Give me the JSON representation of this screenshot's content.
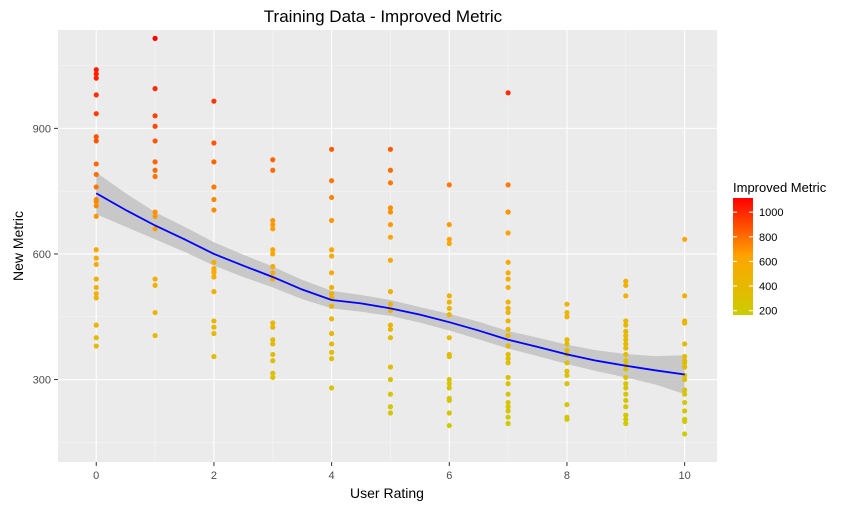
{
  "chart_data": {
    "type": "scatter",
    "title": "Training Data - Improved Metric",
    "xlabel": "User Rating",
    "ylabel": "New Metric",
    "xlim": [
      -0.65,
      10.55
    ],
    "ylim": [
      103,
      1135
    ],
    "x_ticks": [
      0,
      2,
      4,
      6,
      8,
      10
    ],
    "y_ticks": [
      300,
      600,
      900
    ],
    "grid": true,
    "background": "#ebebeb",
    "legend": {
      "title": "Improved Metric",
      "position": "right",
      "ticks": [
        200,
        400,
        600,
        800,
        1000
      ],
      "range": [
        165,
        1115
      ],
      "colors": {
        "low": "#cccc00",
        "mid": "#ffa500",
        "high": "#ff0000"
      }
    },
    "smooth": {
      "color": "#0000ff",
      "band_color": "#bfbfbf",
      "x": [
        0,
        0.5,
        1,
        1.5,
        2,
        2.5,
        3,
        3.5,
        4,
        4.5,
        5,
        5.5,
        6,
        6.5,
        7,
        7.5,
        8,
        8.5,
        9,
        9.5,
        10
      ],
      "y": [
        745,
        705,
        668,
        635,
        600,
        572,
        545,
        515,
        490,
        482,
        470,
        455,
        437,
        417,
        395,
        378,
        360,
        345,
        333,
        322,
        312
      ],
      "lower": [
        695,
        665,
        635,
        605,
        572,
        545,
        520,
        492,
        470,
        462,
        452,
        436,
        417,
        396,
        374,
        356,
        337,
        320,
        305,
        288,
        265
      ],
      "upper": [
        795,
        745,
        700,
        665,
        628,
        598,
        570,
        538,
        512,
        502,
        490,
        473,
        457,
        438,
        416,
        400,
        383,
        370,
        361,
        356,
        358
      ]
    },
    "points": {
      "x0": [
        1040,
        1030,
        1020,
        980,
        935,
        880,
        870,
        815,
        790,
        760,
        730,
        725,
        715,
        690,
        610,
        590,
        575,
        540,
        520,
        505,
        495,
        430,
        400,
        380
      ],
      "x1": [
        1115,
        995,
        930,
        905,
        870,
        820,
        800,
        785,
        700,
        690,
        660,
        540,
        525,
        460,
        405
      ],
      "x2": [
        965,
        865,
        820,
        760,
        730,
        705,
        580,
        565,
        560,
        555,
        545,
        510,
        440,
        425,
        410,
        355
      ],
      "x3": [
        825,
        800,
        680,
        670,
        660,
        610,
        600,
        570,
        555,
        540,
        435,
        425,
        395,
        385,
        360,
        345,
        315,
        305
      ],
      "x4": [
        850,
        775,
        735,
        680,
        610,
        595,
        555,
        520,
        505,
        495,
        475,
        445,
        410,
        385,
        365,
        350,
        280
      ],
      "x5": [
        850,
        800,
        770,
        710,
        700,
        670,
        640,
        585,
        510,
        480,
        465,
        430,
        420,
        400,
        330,
        300,
        265,
        235,
        220
      ],
      "x6": [
        765,
        670,
        635,
        625,
        500,
        485,
        470,
        455,
        400,
        360,
        355,
        300,
        290,
        280,
        255,
        250,
        220,
        190
      ],
      "x7": [
        985,
        765,
        700,
        650,
        580,
        555,
        540,
        520,
        485,
        470,
        460,
        440,
        420,
        405,
        380,
        360,
        350,
        340,
        305,
        290,
        265,
        245,
        235,
        225,
        210,
        195
      ],
      "x8": [
        480,
        460,
        450,
        395,
        385,
        370,
        360,
        340,
        320,
        310,
        290,
        240,
        210,
        205
      ],
      "x9": [
        535,
        525,
        500,
        440,
        430,
        415,
        405,
        395,
        385,
        375,
        360,
        345,
        335,
        325,
        305,
        290,
        280,
        265,
        250,
        235,
        215,
        205,
        195
      ],
      "x10": [
        635,
        500,
        440,
        435,
        385,
        355,
        345,
        340,
        330,
        310,
        300,
        275,
        265,
        245,
        225,
        205,
        200,
        170
      ]
    }
  }
}
